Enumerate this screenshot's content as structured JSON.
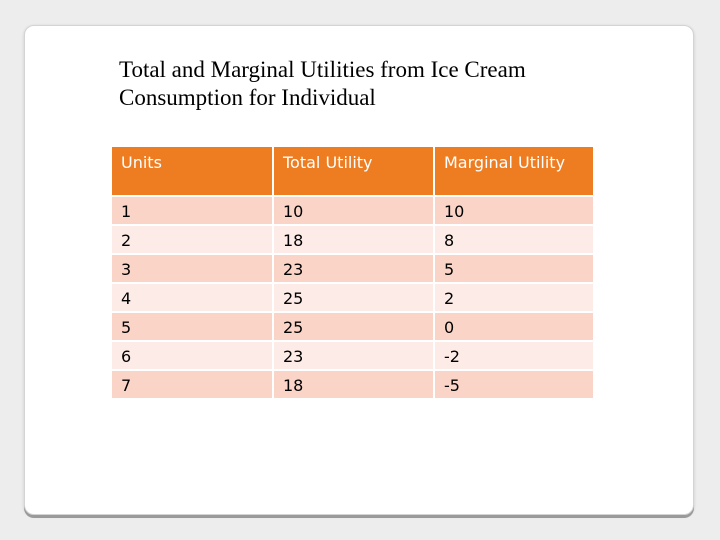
{
  "title": {
    "line1": "Total and Marginal Utilities from Ice Cream",
    "line2": "Consumption for Individual"
  },
  "table": {
    "headers": {
      "units": "Units",
      "total": "Total Utility",
      "marginal": "Marginal Utility"
    },
    "rows": [
      {
        "units": "1",
        "total": "10",
        "marginal": "10"
      },
      {
        "units": "2",
        "total": "18",
        "marginal": "8"
      },
      {
        "units": "3",
        "total": "23",
        "marginal": "5"
      },
      {
        "units": "4",
        "total": "25",
        "marginal": "2"
      },
      {
        "units": "5",
        "total": "25",
        "marginal": "0"
      },
      {
        "units": "6",
        "total": "23",
        "marginal": "-2"
      },
      {
        "units": "7",
        "total": "18",
        "marginal": "-5"
      }
    ]
  },
  "colors": {
    "header_bg": "#ee7d22",
    "row_odd_bg": "#f9d4c7",
    "row_even_bg": "#fcebe6",
    "page_bg": "#ededed"
  }
}
